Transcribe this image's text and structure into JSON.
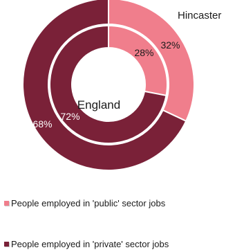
{
  "chart_data": {
    "type": "pie",
    "rings": [
      {
        "name": "Hincaster",
        "slices": [
          {
            "category": "People employed in 'public' sector jobs",
            "value": 32,
            "label": "32%"
          },
          {
            "category": "People employed in 'private' sector jobs",
            "value": 68,
            "label": "68%"
          }
        ]
      },
      {
        "name": "England",
        "slices": [
          {
            "category": "People employed in 'public' sector jobs",
            "value": 28,
            "label": "28%"
          },
          {
            "category": "People employed in 'private' sector jobs",
            "value": 72,
            "label": "72%"
          }
        ]
      }
    ],
    "legend": {
      "placement": "bottom",
      "items": [
        {
          "label": "People employed in 'public' sector jobs",
          "color": "#f07e8c"
        },
        {
          "label": "People employed in 'private' sector jobs",
          "color": "#7a2138"
        }
      ]
    },
    "ring_labels": {
      "outer": "Hincaster",
      "inner": "England"
    }
  }
}
